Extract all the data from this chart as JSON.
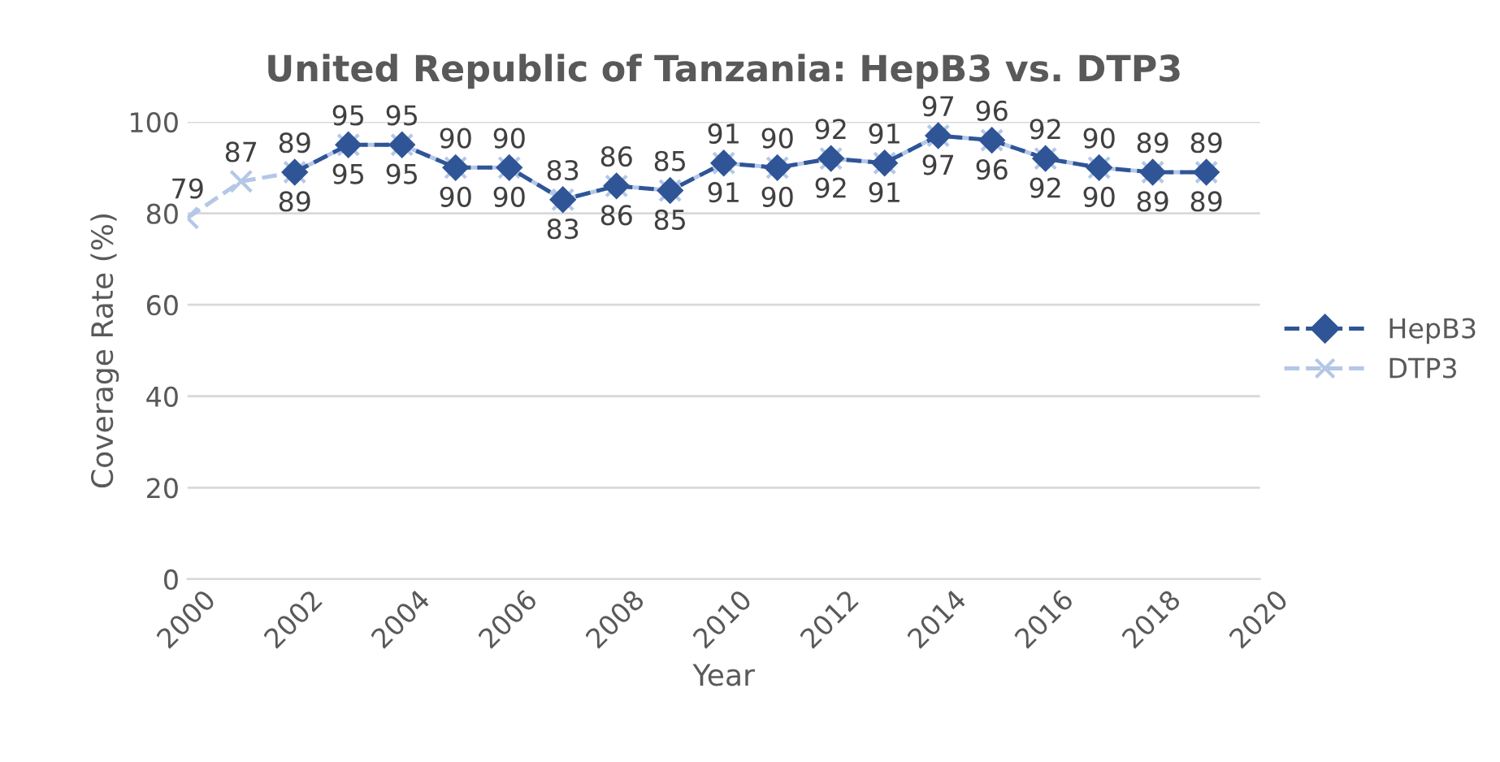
{
  "chart_data": {
    "type": "line",
    "title": "United Republic of Tanzania: HepB3 vs. DTP3",
    "xlabel": "Year",
    "ylabel": "Coverage Rate (%)",
    "xlim": [
      2000,
      2020
    ],
    "xticks": [
      2000,
      2002,
      2004,
      2006,
      2008,
      2010,
      2012,
      2014,
      2016,
      2018,
      2020
    ],
    "ylim": [
      0,
      100
    ],
    "yticks": [
      0,
      20,
      40,
      60,
      80,
      100
    ],
    "grid": "y",
    "legend": "right",
    "data_labels": true,
    "line_style": "dashed",
    "series": [
      {
        "name": "HepB3",
        "color": "#2f5597",
        "marker": "diamond",
        "x": [
          2002,
          2003,
          2004,
          2005,
          2006,
          2007,
          2008,
          2009,
          2010,
          2011,
          2012,
          2013,
          2014,
          2015,
          2016,
          2017,
          2018,
          2019
        ],
        "values": [
          89,
          95,
          95,
          90,
          90,
          83,
          86,
          85,
          91,
          90,
          92,
          91,
          97,
          96,
          92,
          90,
          89,
          89
        ]
      },
      {
        "name": "DTP3",
        "color": "#b4c7e7",
        "marker": "cross",
        "x": [
          2000,
          2001,
          2002,
          2003,
          2004,
          2005,
          2006,
          2007,
          2008,
          2009,
          2010,
          2011,
          2012,
          2013,
          2014,
          2015,
          2016,
          2017,
          2018,
          2019
        ],
        "values": [
          79,
          87,
          89,
          95,
          95,
          90,
          90,
          83,
          86,
          85,
          91,
          90,
          92,
          91,
          97,
          96,
          92,
          90,
          89,
          89
        ]
      }
    ]
  }
}
